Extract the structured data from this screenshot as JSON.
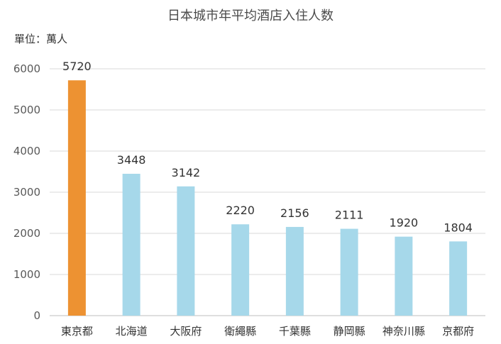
{
  "chart_data": {
    "type": "bar",
    "title": "日本城市年平均酒店入住人数",
    "unit_label": "單位：萬人",
    "categories": [
      "東京都",
      "北海道",
      "大阪府",
      "衛繩縣",
      "千葉縣",
      "静岡縣",
      "神奈川縣",
      "京都府"
    ],
    "values": [
      5720,
      3448,
      3142,
      2220,
      2156,
      2111,
      1920,
      1804
    ],
    "ylim": [
      0,
      6000
    ],
    "yticks": [
      0,
      1000,
      2000,
      3000,
      4000,
      5000,
      6000
    ],
    "grid": true,
    "colors": {
      "highlight": "#ED9232",
      "default": "#A6D8EA",
      "grid": "#D9D9D9"
    },
    "highlight_index": 0
  }
}
